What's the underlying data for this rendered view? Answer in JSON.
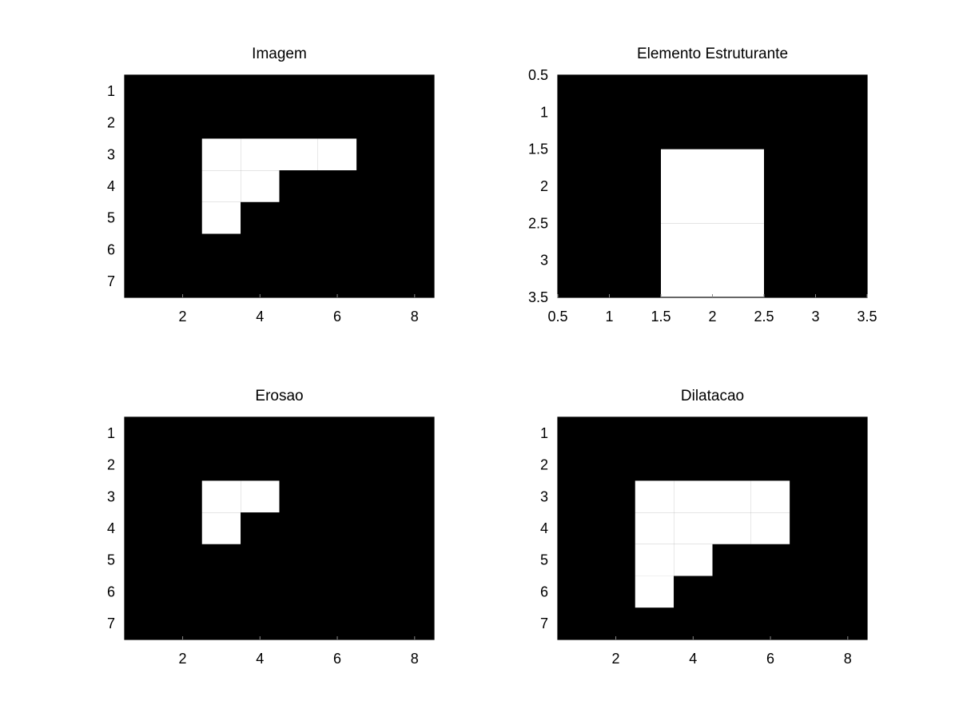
{
  "colors": {
    "background": "#ffffff",
    "pixel_off": "#000000",
    "pixel_on": "#ffffff",
    "text": "#000000"
  },
  "chart_data": [
    {
      "type": "heatmap",
      "title": "Imagem",
      "colormap": "gray-binary",
      "xlim": [
        0.5,
        8.5
      ],
      "ylim": [
        0.5,
        7.5
      ],
      "y_reversed": true,
      "xticks": [
        2,
        4,
        6,
        8
      ],
      "xtick_labels": [
        "2",
        "4",
        "6",
        "8"
      ],
      "yticks": [
        1,
        2,
        3,
        4,
        5,
        6,
        7
      ],
      "ytick_labels": [
        "1",
        "2",
        "3",
        "4",
        "5",
        "6",
        "7"
      ],
      "matrix": [
        [
          0,
          0,
          0,
          0,
          0,
          0,
          0,
          0
        ],
        [
          0,
          0,
          0,
          0,
          0,
          0,
          0,
          0
        ],
        [
          0,
          0,
          1,
          1,
          1,
          1,
          0,
          0
        ],
        [
          0,
          0,
          1,
          1,
          0,
          0,
          0,
          0
        ],
        [
          0,
          0,
          1,
          0,
          0,
          0,
          0,
          0
        ],
        [
          0,
          0,
          0,
          0,
          0,
          0,
          0,
          0
        ],
        [
          0,
          0,
          0,
          0,
          0,
          0,
          0,
          0
        ]
      ]
    },
    {
      "type": "heatmap",
      "title": "Elemento Estruturante",
      "colormap": "gray-binary",
      "xlim": [
        0.5,
        3.5
      ],
      "ylim": [
        0.5,
        3.5
      ],
      "y_reversed": true,
      "xticks": [
        0.5,
        1,
        1.5,
        2,
        2.5,
        3,
        3.5
      ],
      "xtick_labels": [
        "0.5",
        "1",
        "1.5",
        "2",
        "2.5",
        "3",
        "3.5"
      ],
      "yticks": [
        0.5,
        1,
        1.5,
        2,
        2.5,
        3,
        3.5
      ],
      "ytick_labels": [
        "0.5",
        "1",
        "1.5",
        "2",
        "2.5",
        "3",
        "3.5"
      ],
      "matrix": [
        [
          0,
          0,
          0
        ],
        [
          0,
          1,
          0
        ],
        [
          0,
          1,
          0
        ]
      ]
    },
    {
      "type": "heatmap",
      "title": "Erosao",
      "colormap": "gray-binary",
      "xlim": [
        0.5,
        8.5
      ],
      "ylim": [
        0.5,
        7.5
      ],
      "y_reversed": true,
      "xticks": [
        2,
        4,
        6,
        8
      ],
      "xtick_labels": [
        "2",
        "4",
        "6",
        "8"
      ],
      "yticks": [
        1,
        2,
        3,
        4,
        5,
        6,
        7
      ],
      "ytick_labels": [
        "1",
        "2",
        "3",
        "4",
        "5",
        "6",
        "7"
      ],
      "matrix": [
        [
          0,
          0,
          0,
          0,
          0,
          0,
          0,
          0
        ],
        [
          0,
          0,
          0,
          0,
          0,
          0,
          0,
          0
        ],
        [
          0,
          0,
          1,
          1,
          0,
          0,
          0,
          0
        ],
        [
          0,
          0,
          1,
          0,
          0,
          0,
          0,
          0
        ],
        [
          0,
          0,
          0,
          0,
          0,
          0,
          0,
          0
        ],
        [
          0,
          0,
          0,
          0,
          0,
          0,
          0,
          0
        ],
        [
          0,
          0,
          0,
          0,
          0,
          0,
          0,
          0
        ]
      ]
    },
    {
      "type": "heatmap",
      "title": "Dilatacao",
      "colormap": "gray-binary",
      "xlim": [
        0.5,
        8.5
      ],
      "ylim": [
        0.5,
        7.5
      ],
      "y_reversed": true,
      "xticks": [
        2,
        4,
        6,
        8
      ],
      "xtick_labels": [
        "2",
        "4",
        "6",
        "8"
      ],
      "yticks": [
        1,
        2,
        3,
        4,
        5,
        6,
        7
      ],
      "ytick_labels": [
        "1",
        "2",
        "3",
        "4",
        "5",
        "6",
        "7"
      ],
      "matrix": [
        [
          0,
          0,
          0,
          0,
          0,
          0,
          0,
          0
        ],
        [
          0,
          0,
          0,
          0,
          0,
          0,
          0,
          0
        ],
        [
          0,
          0,
          1,
          1,
          1,
          1,
          0,
          0
        ],
        [
          0,
          0,
          1,
          1,
          1,
          1,
          0,
          0
        ],
        [
          0,
          0,
          1,
          1,
          0,
          0,
          0,
          0
        ],
        [
          0,
          0,
          1,
          0,
          0,
          0,
          0,
          0
        ],
        [
          0,
          0,
          0,
          0,
          0,
          0,
          0,
          0
        ]
      ]
    }
  ]
}
